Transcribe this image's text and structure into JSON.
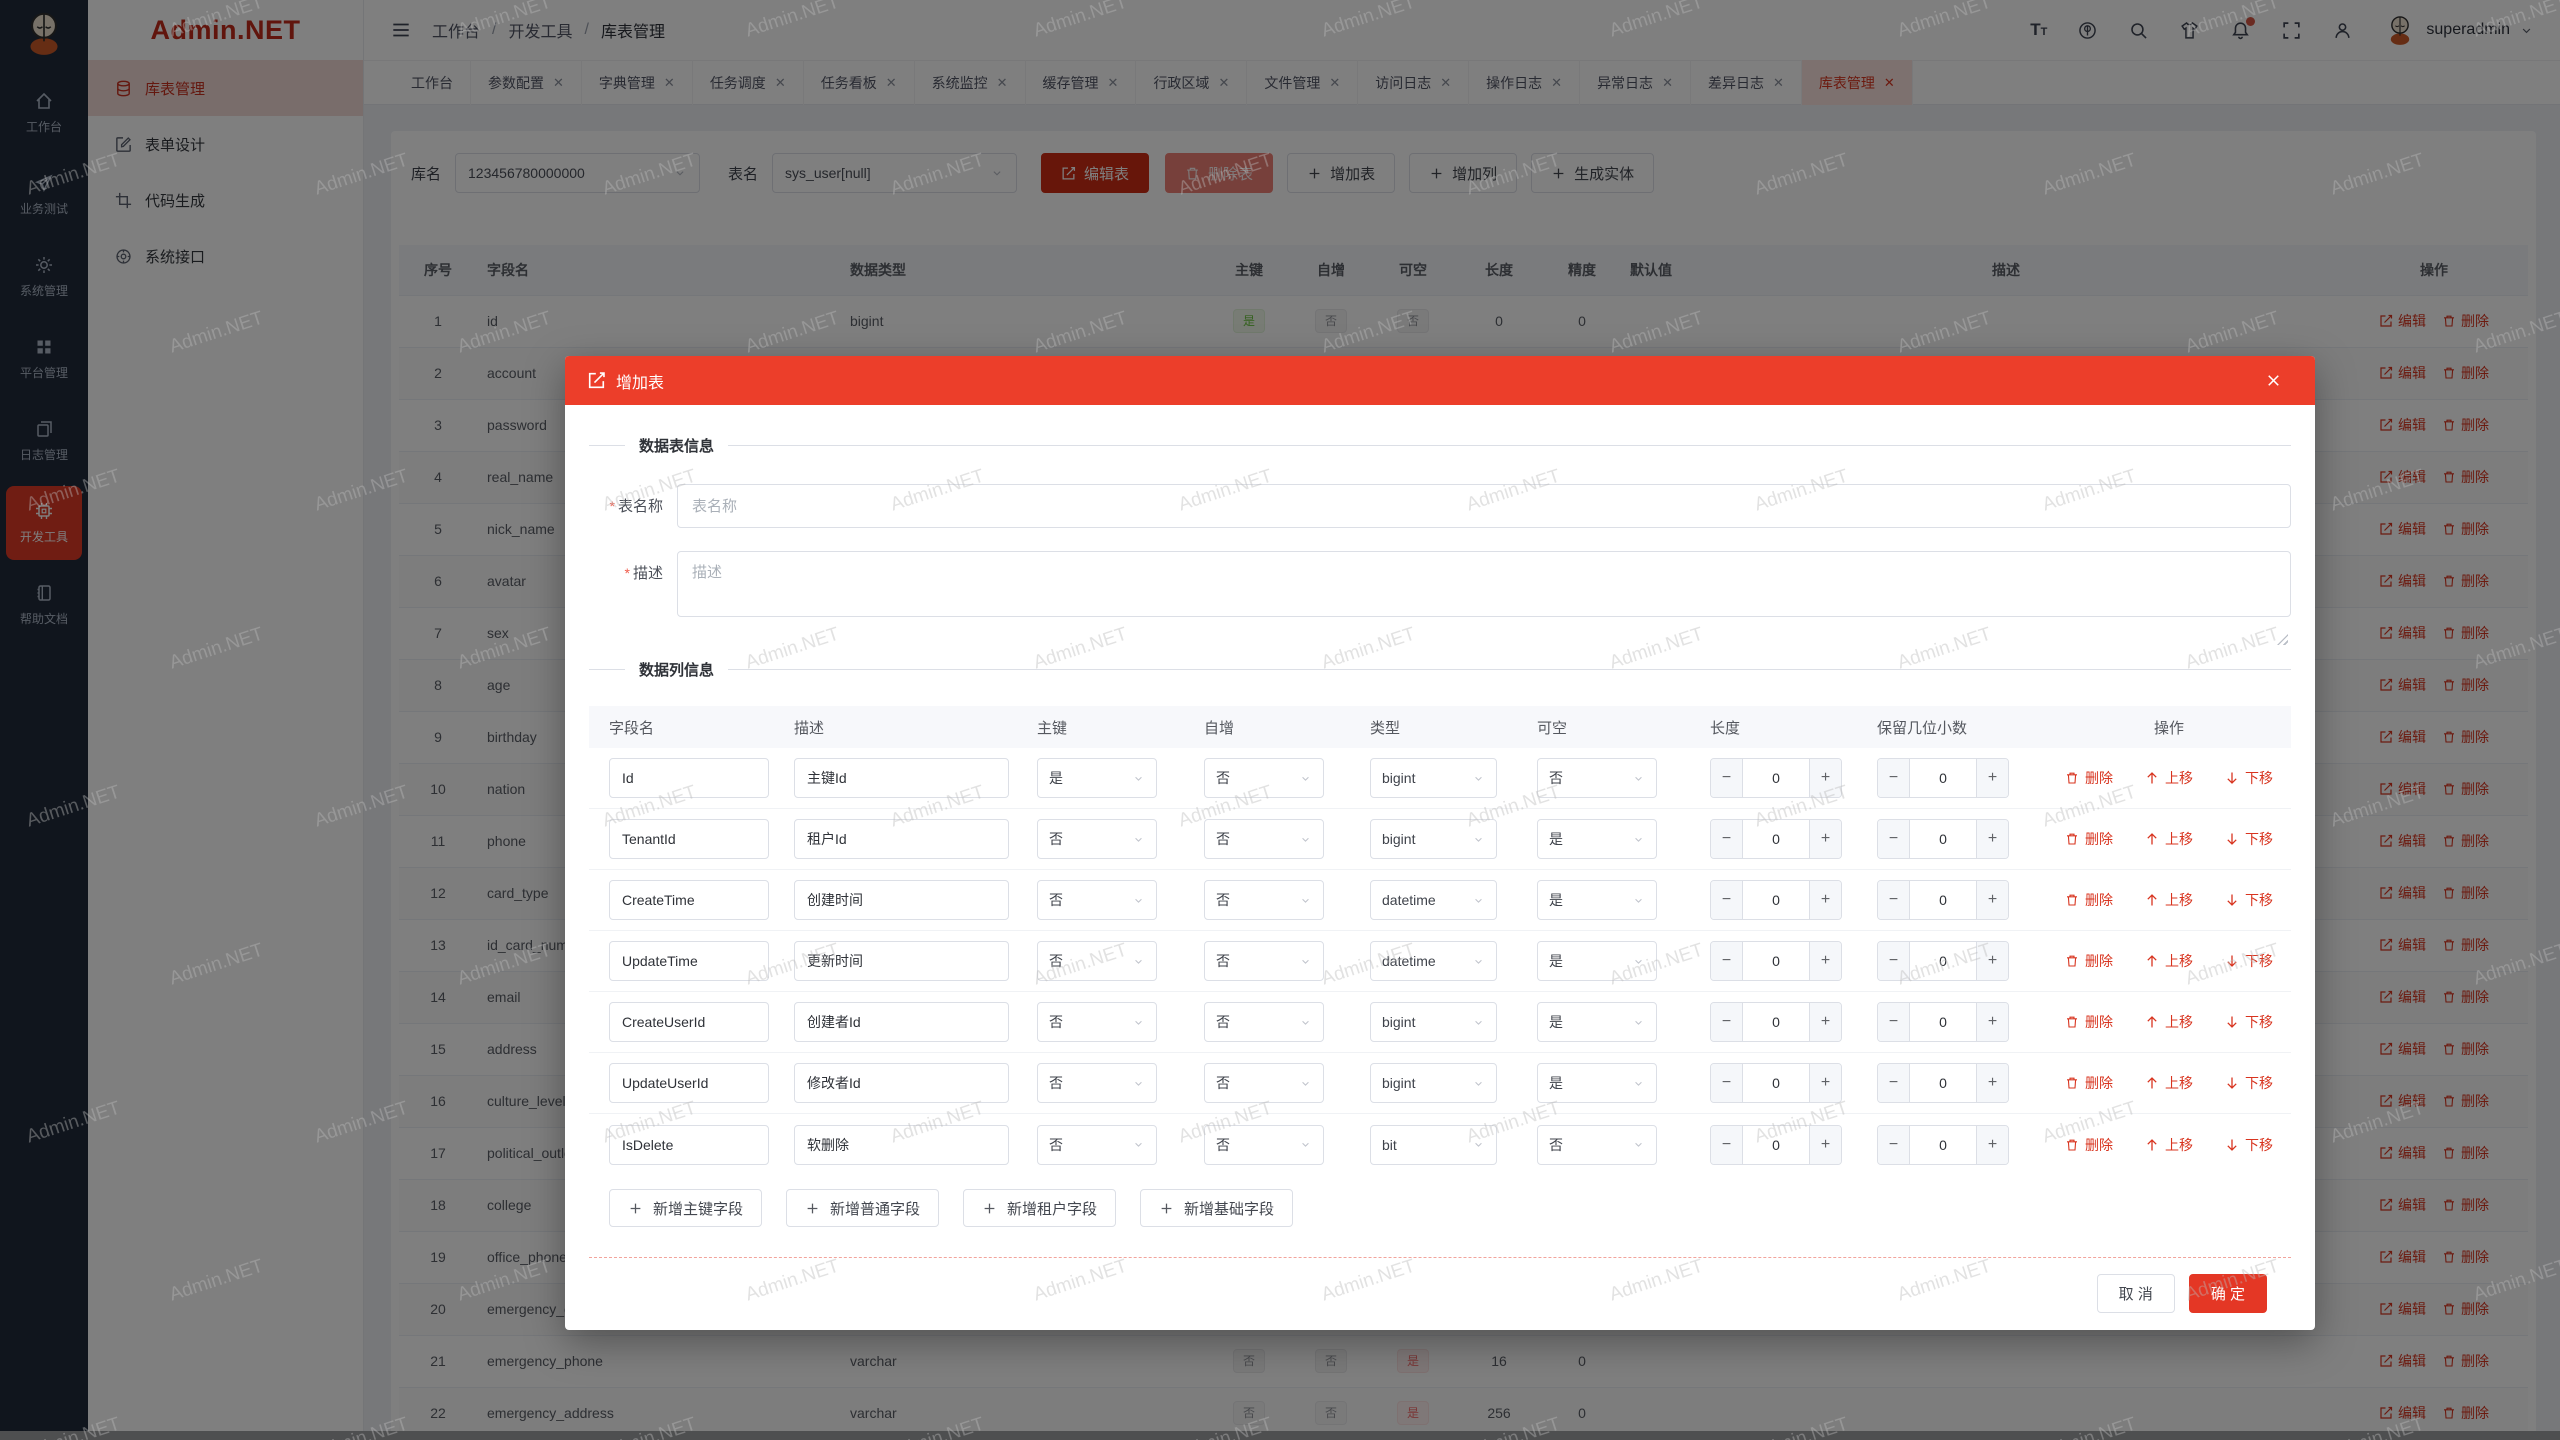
{
  "watermark": "Admin.NET",
  "brand": "Admin.NET",
  "rail": {
    "items": [
      {
        "label": "工作台"
      },
      {
        "label": "业务测试"
      },
      {
        "label": "系统管理"
      },
      {
        "label": "平台管理"
      },
      {
        "label": "日志管理"
      },
      {
        "label": "开发工具"
      },
      {
        "label": "帮助文档"
      }
    ]
  },
  "submenu": [
    {
      "label": "库表管理"
    },
    {
      "label": "表单设计"
    },
    {
      "label": "代码生成"
    },
    {
      "label": "系统接口"
    }
  ],
  "breadcrumb": {
    "a": "工作台",
    "b": "开发工具",
    "c": "库表管理"
  },
  "userbar": {
    "username": "superadmin"
  },
  "tabs": [
    "工作台",
    "参数配置",
    "字典管理",
    "任务调度",
    "任务看板",
    "系统监控",
    "缓存管理",
    "行政区域",
    "文件管理",
    "访问日志",
    "操作日志",
    "异常日志",
    "差异日志",
    "库表管理"
  ],
  "toolbar": {
    "db_label": "库名",
    "db_value": "123456780000000",
    "tbl_label": "表名",
    "tbl_value": "sys_user[null]",
    "edit": "编辑表",
    "del": "删除表",
    "add_table": "增加表",
    "add_col": "增加列",
    "gen": "生成实体"
  },
  "grid": {
    "headers": [
      "序号",
      "字段名",
      "数据类型",
      "主键",
      "自增",
      "可空",
      "长度",
      "精度",
      "默认值",
      "描述",
      "操作"
    ],
    "edit": "编辑",
    "del": "删除",
    "rows": [
      {
        "no": "1",
        "name": "id",
        "type": "bigint",
        "pk": {
          "t": "是",
          "k": "success"
        },
        "inc": {
          "t": "否",
          "k": "info"
        },
        "nul": {
          "t": "否",
          "k": "info"
        },
        "len": "0",
        "prec": "0"
      },
      {
        "no": "2",
        "name": "account"
      },
      {
        "no": "3",
        "name": "password"
      },
      {
        "no": "4",
        "name": "real_name"
      },
      {
        "no": "5",
        "name": "nick_name"
      },
      {
        "no": "6",
        "name": "avatar"
      },
      {
        "no": "7",
        "name": "sex"
      },
      {
        "no": "8",
        "name": "age"
      },
      {
        "no": "9",
        "name": "birthday"
      },
      {
        "no": "10",
        "name": "nation"
      },
      {
        "no": "11",
        "name": "phone"
      },
      {
        "no": "12",
        "name": "card_type"
      },
      {
        "no": "13",
        "name": "id_card_num"
      },
      {
        "no": "14",
        "name": "email"
      },
      {
        "no": "15",
        "name": "address"
      },
      {
        "no": "16",
        "name": "culture_level"
      },
      {
        "no": "17",
        "name": "political_outlook"
      },
      {
        "no": "18",
        "name": "college"
      },
      {
        "no": "19",
        "name": "office_phone"
      },
      {
        "no": "20",
        "name": "emergency_contact"
      },
      {
        "no": "21",
        "name": "emergency_phone",
        "type": "varchar",
        "pk": {
          "t": "否",
          "k": "info"
        },
        "inc": {
          "t": "否",
          "k": "info"
        },
        "nul": {
          "t": "是",
          "k": "danger"
        },
        "len": "16",
        "prec": "0"
      },
      {
        "no": "22",
        "name": "emergency_address",
        "type": "varchar",
        "pk": {
          "t": "否",
          "k": "info"
        },
        "inc": {
          "t": "否",
          "k": "info"
        },
        "nul": {
          "t": "是",
          "k": "danger"
        },
        "len": "256",
        "prec": "0"
      }
    ]
  },
  "dialog": {
    "title": "增加表",
    "sec1": "数据表信息",
    "sec2": "数据列信息",
    "name_label": "表名称",
    "name_ph": "表名称",
    "desc_label": "描述",
    "desc_ph": "描述",
    "cols": [
      "字段名",
      "描述",
      "主键",
      "自增",
      "类型",
      "可空",
      "长度",
      "保留几位小数",
      "操作"
    ],
    "del": "删除",
    "up": "上移",
    "down": "下移",
    "rows": [
      {
        "name": "Id",
        "desc": "主键Id",
        "pk": "是",
        "inc": "否",
        "type": "bigint",
        "nul": "否",
        "len": "0",
        "dec": "0"
      },
      {
        "name": "TenantId",
        "desc": "租户Id",
        "pk": "否",
        "inc": "否",
        "type": "bigint",
        "nul": "是",
        "len": "0",
        "dec": "0"
      },
      {
        "name": "CreateTime",
        "desc": "创建时间",
        "pk": "否",
        "inc": "否",
        "type": "datetime",
        "nul": "是",
        "len": "0",
        "dec": "0"
      },
      {
        "name": "UpdateTime",
        "desc": "更新时间",
        "pk": "否",
        "inc": "否",
        "type": "datetime",
        "nul": "是",
        "len": "0",
        "dec": "0"
      },
      {
        "name": "CreateUserId",
        "desc": "创建者Id",
        "pk": "否",
        "inc": "否",
        "type": "bigint",
        "nul": "是",
        "len": "0",
        "dec": "0"
      },
      {
        "name": "UpdateUserId",
        "desc": "修改者Id",
        "pk": "否",
        "inc": "否",
        "type": "bigint",
        "nul": "是",
        "len": "0",
        "dec": "0"
      },
      {
        "name": "IsDelete",
        "desc": "软删除",
        "pk": "否",
        "inc": "否",
        "type": "bit",
        "nul": "否",
        "len": "0",
        "dec": "0"
      }
    ],
    "adds": [
      "新增主键字段",
      "新增普通字段",
      "新增租户字段",
      "新增基础字段"
    ],
    "cancel": "取 消",
    "ok": "确 定"
  }
}
